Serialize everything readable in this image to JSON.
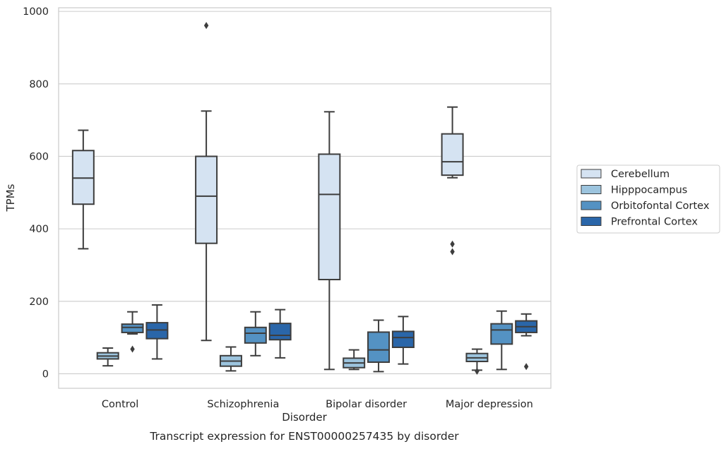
{
  "chart_data": {
    "type": "box",
    "xlabel": "Disorder",
    "ylabel": "TPMs",
    "caption": "Transcript expression for ENST00000257435 by disorder",
    "ylim": [
      -40,
      1010
    ],
    "yticks": [
      0,
      200,
      400,
      600,
      800,
      1000
    ],
    "grid": "y",
    "legend_position": "right",
    "categories": [
      "Control",
      "Schizophrenia",
      "Bipolar disorder",
      "Major depression"
    ],
    "series": [
      {
        "name": "Cerebellum",
        "color": "#d5e3f2",
        "boxes": [
          {
            "whisker_low": 345,
            "q1": 468,
            "median": 540,
            "q3": 616,
            "whisker_high": 672,
            "outliers": []
          },
          {
            "whisker_low": 92,
            "q1": 360,
            "median": 490,
            "q3": 600,
            "whisker_high": 725,
            "outliers": [
              961
            ]
          },
          {
            "whisker_low": 12,
            "q1": 260,
            "median": 495,
            "q3": 606,
            "whisker_high": 723,
            "outliers": []
          },
          {
            "whisker_low": 541,
            "q1": 548,
            "median": 585,
            "q3": 662,
            "whisker_high": 736,
            "outliers": [
              358,
              337
            ]
          }
        ]
      },
      {
        "name": "Hipppocampus",
        "color": "#9cc4de",
        "boxes": [
          {
            "whisker_low": 22,
            "q1": 41,
            "median": 49,
            "q3": 58,
            "whisker_high": 71,
            "outliers": []
          },
          {
            "whisker_low": 8,
            "q1": 21,
            "median": 35,
            "q3": 50,
            "whisker_high": 74,
            "outliers": []
          },
          {
            "whisker_low": 12,
            "q1": 17,
            "median": 30,
            "q3": 43,
            "whisker_high": 66,
            "outliers": []
          },
          {
            "whisker_low": 10,
            "q1": 34,
            "median": 44,
            "q3": 56,
            "whisker_high": 68,
            "outliers": [
              7
            ]
          }
        ]
      },
      {
        "name": "Orbitofontal Cortex",
        "color": "#5492c3",
        "boxes": [
          {
            "whisker_low": 110,
            "q1": 114,
            "median": 128,
            "q3": 137,
            "whisker_high": 171,
            "outliers": [
              68
            ]
          },
          {
            "whisker_low": 50,
            "q1": 85,
            "median": 112,
            "q3": 128,
            "whisker_high": 171,
            "outliers": []
          },
          {
            "whisker_low": 6,
            "q1": 32,
            "median": 66,
            "q3": 115,
            "whisker_high": 148,
            "outliers": []
          },
          {
            "whisker_low": 12,
            "q1": 82,
            "median": 121,
            "q3": 138,
            "whisker_high": 173,
            "outliers": []
          }
        ]
      },
      {
        "name": "Prefrontal Cortex",
        "color": "#2a66a9",
        "boxes": [
          {
            "whisker_low": 41,
            "q1": 97,
            "median": 121,
            "q3": 141,
            "whisker_high": 190,
            "outliers": []
          },
          {
            "whisker_low": 44,
            "q1": 94,
            "median": 106,
            "q3": 139,
            "whisker_high": 177,
            "outliers": []
          },
          {
            "whisker_low": 27,
            "q1": 73,
            "median": 100,
            "q3": 117,
            "whisker_high": 158,
            "outliers": []
          },
          {
            "whisker_low": 105,
            "q1": 114,
            "median": 130,
            "q3": 146,
            "whisker_high": 165,
            "outliers": [
              20
            ]
          }
        ]
      }
    ]
  }
}
